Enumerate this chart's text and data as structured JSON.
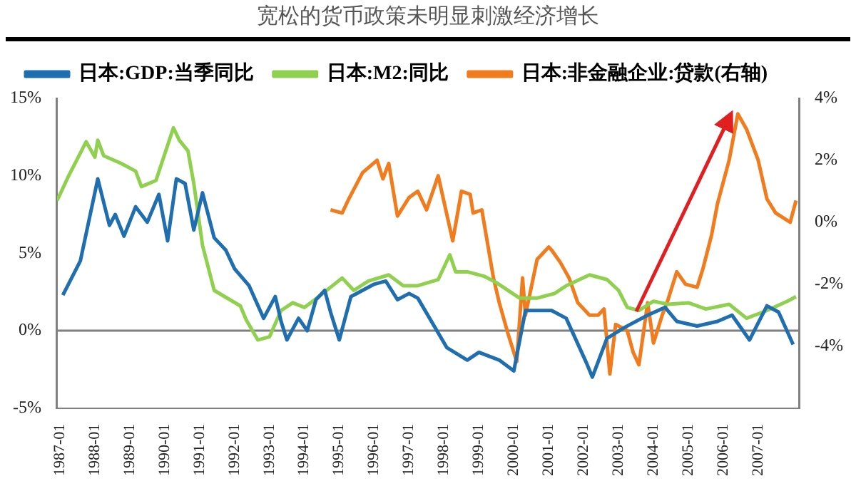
{
  "chart_data": {
    "type": "line",
    "title": "宽松的货币政策未明显刺激经济增长",
    "legend": "top left",
    "grid": false,
    "marker": "none",
    "line_style": "solid",
    "xlim": [
      "1986-12",
      "2008-03"
    ],
    "xticks": [
      "1987-01",
      "1988-01",
      "1989-01",
      "1990-01",
      "1991-01",
      "1992-01",
      "1993-01",
      "1994-01",
      "1995-01",
      "1996-01",
      "1997-01",
      "1998-01",
      "1999-01",
      "2000-01",
      "2001-01",
      "2002-01",
      "2003-01",
      "2004-01",
      "2005-01",
      "2006-01",
      "2007-01"
    ],
    "ylim": [
      -5,
      15
    ],
    "yticks": [
      {
        "value": -5,
        "label": "-5%"
      },
      {
        "value": 0,
        "label": "0%"
      },
      {
        "value": 5,
        "label": "5%"
      },
      {
        "value": 10,
        "label": "10%"
      },
      {
        "value": 15,
        "label": "15%"
      }
    ],
    "y2lim": [
      -6,
      4
    ],
    "y2ticks": [
      {
        "value": -4,
        "label": "-4%"
      },
      {
        "value": -2,
        "label": "-2%"
      },
      {
        "value": 0,
        "label": "0%"
      },
      {
        "value": 2,
        "label": "2%"
      },
      {
        "value": 4,
        "label": "4%"
      }
    ],
    "ref_lines": [
      {
        "axis": "y",
        "value": 0,
        "color": "#808080"
      }
    ],
    "series": [
      {
        "name": "日本:GDP:当季同比",
        "color": "#1f6fb0",
        "x": [
          "1987-02",
          "1987-08",
          "1988-02",
          "1988-06",
          "1988-08",
          "1988-11",
          "1989-03",
          "1989-07",
          "1989-11",
          "1990-02",
          "1990-05",
          "1990-08",
          "1990-11",
          "1991-02",
          "1991-06",
          "1991-10",
          "1992-01",
          "1992-06",
          "1992-11",
          "1993-03",
          "1993-05",
          "1993-07",
          "1993-11",
          "1994-02",
          "1994-05",
          "1994-08",
          "1994-10",
          "1995-01",
          "1995-05",
          "1995-09",
          "1996-01",
          "1996-05",
          "1996-09",
          "1997-01",
          "1997-04",
          "1998-02",
          "1998-09",
          "1999-01",
          "1999-08",
          "2000-01",
          "2000-05",
          "2001-02",
          "2001-07",
          "2002-02",
          "2002-04",
          "2002-09",
          "2003-03",
          "2003-11",
          "2004-05",
          "2004-09",
          "2005-04",
          "2005-11",
          "2006-04",
          "2006-10",
          "2007-04",
          "2007-08",
          "2008-01"
        ],
        "values": [
          2.3,
          4.5,
          9.8,
          6.8,
          7.5,
          6.1,
          8.0,
          7.0,
          8.8,
          5.8,
          9.8,
          9.5,
          6.5,
          8.9,
          6.0,
          5.2,
          4.0,
          2.9,
          0.8,
          2.2,
          0.6,
          -0.6,
          0.8,
          0.0,
          2.0,
          2.6,
          1.2,
          -0.6,
          2.2,
          2.6,
          3.0,
          3.2,
          2.0,
          2.4,
          2.1,
          -1.1,
          -1.9,
          -1.4,
          -1.9,
          -2.6,
          1.3,
          1.3,
          0.8,
          -2.1,
          -3.0,
          -0.5,
          0.2,
          1.0,
          1.5,
          0.6,
          0.3,
          0.6,
          1.0,
          -0.6,
          1.6,
          1.2,
          -0.9
        ]
      },
      {
        "name": "日本:M2:同比",
        "color": "#8fd14f",
        "x": [
          "1986-12",
          "1987-04",
          "1987-10",
          "1988-01",
          "1988-02",
          "1988-04",
          "1988-10",
          "1989-03",
          "1989-05",
          "1989-10",
          "1990-01",
          "1990-04",
          "1990-06",
          "1990-09",
          "1990-11",
          "1991-02",
          "1991-06",
          "1992-03",
          "1992-05",
          "1992-09",
          "1993-01",
          "1993-05",
          "1993-09",
          "1994-01",
          "1994-06",
          "1994-10",
          "1995-02",
          "1995-06",
          "1995-11",
          "1996-06",
          "1996-11",
          "1997-04",
          "1997-11",
          "1998-03",
          "1998-05",
          "1998-09",
          "1999-03",
          "1999-07",
          "2000-03",
          "2000-09",
          "2001-03",
          "2001-07",
          "2002-03",
          "2002-09",
          "2003-01",
          "2003-04",
          "2003-08",
          "2004-01",
          "2004-06",
          "2005-01",
          "2005-07",
          "2006-03",
          "2006-09",
          "2007-04",
          "2007-11",
          "2008-02"
        ],
        "values": [
          8.4,
          10.0,
          12.2,
          11.2,
          12.3,
          11.3,
          10.8,
          10.3,
          9.3,
          9.7,
          11.4,
          13.1,
          12.3,
          11.6,
          9.5,
          5.5,
          2.6,
          1.6,
          0.7,
          -0.6,
          -0.4,
          1.3,
          1.8,
          1.5,
          2.2,
          2.8,
          3.4,
          2.6,
          3.2,
          3.6,
          2.9,
          2.9,
          3.3,
          4.9,
          3.8,
          3.8,
          3.5,
          3.1,
          2.1,
          2.1,
          2.4,
          2.9,
          3.6,
          3.3,
          2.6,
          1.5,
          1.3,
          1.9,
          1.7,
          1.8,
          1.4,
          1.7,
          0.8,
          1.3,
          1.9,
          2.2
        ]
      },
      {
        "name": "日本:非金融企业:贷款(右轴)",
        "color": "#f07c1e",
        "axis": "y2",
        "x": [
          "1994-10",
          "1995-02",
          "1995-04",
          "1995-09",
          "1996-02",
          "1996-04",
          "1996-06",
          "1996-09",
          "1997-01",
          "1997-04",
          "1997-07",
          "1997-11",
          "1998-04",
          "1998-07",
          "1998-10",
          "1998-11",
          "1999-02",
          "1999-06",
          "1999-08",
          "1999-11",
          "2000-02",
          "2000-04",
          "2000-05",
          "2000-09",
          "2001-01",
          "2001-02",
          "2001-05",
          "2001-08",
          "2001-11",
          "2002-03",
          "2002-06",
          "2002-08",
          "2002-10",
          "2002-12",
          "2003-04",
          "2003-06",
          "2003-08",
          "2003-11",
          "2004-01",
          "2004-04",
          "2004-06",
          "2004-09",
          "2004-12",
          "2005-04",
          "2005-06",
          "2005-09",
          "2005-11",
          "2006-03",
          "2006-06",
          "2006-09",
          "2007-01",
          "2007-04",
          "2007-07",
          "2007-12",
          "2008-02"
        ],
        "values": [
          0.4,
          0.3,
          0.7,
          1.6,
          2.0,
          1.4,
          1.9,
          0.2,
          0.8,
          1.0,
          0.4,
          1.5,
          -0.6,
          1.0,
          0.9,
          0.3,
          0.4,
          -1.8,
          -2.6,
          -3.6,
          -4.5,
          -1.8,
          -3.0,
          -1.2,
          -0.8,
          -0.9,
          -1.3,
          -1.8,
          -2.6,
          -3.0,
          -3.0,
          -2.8,
          -4.9,
          -3.3,
          -3.5,
          -4.2,
          -4.6,
          -2.6,
          -3.9,
          -3.0,
          -2.5,
          -1.6,
          -2.0,
          -2.1,
          -1.5,
          -0.4,
          0.6,
          2.0,
          3.5,
          3.0,
          2.0,
          0.75,
          0.3,
          0.0,
          0.7
        ]
      }
    ]
  }
}
